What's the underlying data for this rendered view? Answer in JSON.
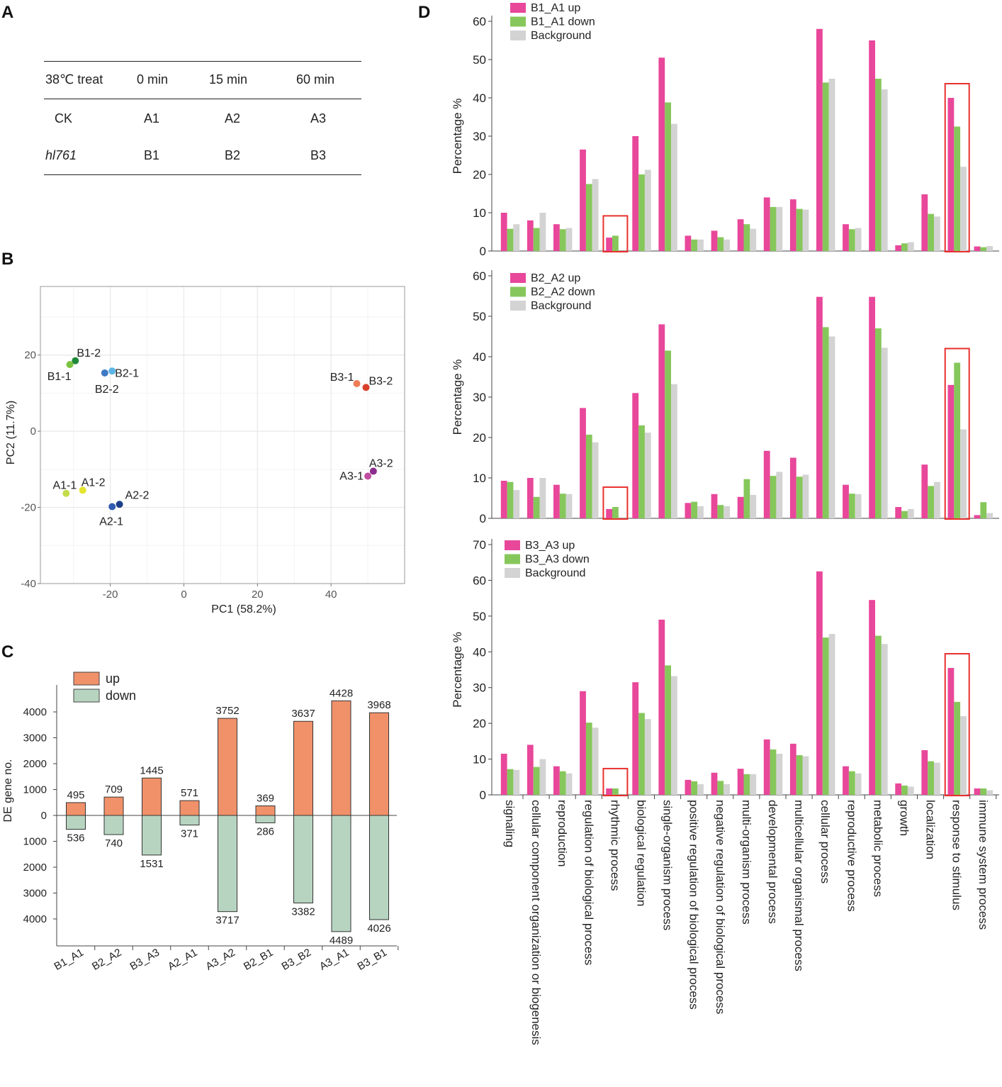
{
  "panels": {
    "a": "A",
    "b": "B",
    "c": "C",
    "d": "D"
  },
  "table": {
    "header": [
      "38℃ treat",
      "0 min",
      "15 min",
      "60 min"
    ],
    "rows": [
      [
        "CK",
        "A1",
        "A2",
        "A3"
      ],
      [
        "hl761",
        "B1",
        "B2",
        "B3"
      ]
    ]
  },
  "colors": {
    "up": "#F0916A",
    "down": "#B7D4C0",
    "pca_axis": "#777777",
    "go_up": "#E8479A",
    "go_down": "#86C75B",
    "go_bg": "#D3D3D3",
    "highlight": "#E8302E"
  },
  "chart_data": [
    {
      "id": "pca",
      "type": "scatter",
      "xlabel": "PC1 (58.2%)",
      "ylabel": "PC2 (11.7%)",
      "xlim": [
        -39,
        60
      ],
      "ylim": [
        -40,
        38
      ],
      "xticks": [
        -20,
        0,
        20,
        40
      ],
      "yticks": [
        20,
        0,
        -20,
        -40
      ],
      "points": [
        {
          "label": "B1-2",
          "x": -29.5,
          "y": 18.5,
          "color": "#1E8A3A"
        },
        {
          "label": "B1-1",
          "x": -31,
          "y": 17.5,
          "color": "#7CC242"
        },
        {
          "label": "B2-1",
          "x": -19.5,
          "y": 15.8,
          "color": "#5BB4E5"
        },
        {
          "label": "B2-2",
          "x": -21.5,
          "y": 15.3,
          "color": "#3F79C3"
        },
        {
          "label": "B3-1",
          "x": 47,
          "y": 12.5,
          "color": "#EE7D55"
        },
        {
          "label": "B3-2",
          "x": 49.5,
          "y": 11.5,
          "color": "#D9412B"
        },
        {
          "label": "A1-1",
          "x": -32,
          "y": -16.3,
          "color": "#C5DC4A"
        },
        {
          "label": "A1-2",
          "x": -27.5,
          "y": -15.5,
          "color": "#E3E52E"
        },
        {
          "label": "A2-1",
          "x": -19.5,
          "y": -19.8,
          "color": "#2F5BB0"
        },
        {
          "label": "A2-2",
          "x": -17.5,
          "y": -19.2,
          "color": "#1B3F8A"
        },
        {
          "label": "A3-1",
          "x": 50,
          "y": -11.8,
          "color": "#C04EA0"
        },
        {
          "label": "A3-2",
          "x": 51.5,
          "y": -10.5,
          "color": "#8B2C8E"
        }
      ]
    },
    {
      "id": "de",
      "type": "bar",
      "ylabel": "DE gene no.",
      "legend": [
        "up",
        "down"
      ],
      "yticks_up": [
        "4000",
        "3000",
        "2000",
        "1000",
        "0"
      ],
      "yticks_down": [
        "1000",
        "2000",
        "3000",
        "4000"
      ],
      "categories": [
        "B1_A1",
        "B2_A2",
        "B3_A3",
        "A2_A1",
        "A3_A2",
        "B2_B1",
        "B3_B2",
        "A3_A1",
        "B3_B1"
      ],
      "series": [
        {
          "name": "up",
          "values": [
            495,
            709,
            1445,
            571,
            3752,
            369,
            3637,
            4428,
            3968
          ]
        },
        {
          "name": "down",
          "values": [
            536,
            740,
            1531,
            371,
            3717,
            286,
            3382,
            4489,
            4026
          ]
        }
      ]
    },
    {
      "id": "go",
      "type": "bar",
      "ylabel": "Percentage %",
      "categories": [
        "signaling",
        "cellular component organization or biogenesis",
        "reproduction",
        "regulation of biological process",
        "rhythmic process",
        "biological regulation",
        "single-organism process",
        "positive regulation of biological process",
        "negative regulation of biological process",
        "multi-organism process",
        "developmental process",
        "multicellular organismal process",
        "cellular process",
        "reproductive process",
        "metabolic process",
        "growth",
        "localization",
        "response to stimulus",
        "immune system process"
      ],
      "highlighted_categories": [
        "rhythmic process",
        "response to stimulus"
      ],
      "subplots": [
        {
          "ylim": [
            0,
            60
          ],
          "yticks": [
            "0",
            "10",
            "20",
            "30",
            "40",
            "50",
            "60"
          ],
          "series": [
            {
              "name": "B1_A1 up",
              "values": [
                10,
                8,
                7,
                26.5,
                3.5,
                30,
                50.5,
                4,
                5.3,
                8.3,
                14,
                13.5,
                58,
                7,
                55,
                1.5,
                14.8,
                40,
                1.2
              ]
            },
            {
              "name": "B1_A1 down",
              "values": [
                5.8,
                6,
                5.7,
                17.5,
                4,
                20,
                38.8,
                3,
                3.6,
                7,
                11.5,
                11,
                44,
                5.7,
                45,
                2,
                9.7,
                32.5,
                1
              ]
            },
            {
              "name": "Background",
              "values": [
                7,
                10,
                6,
                18.8,
                0,
                21.2,
                33.2,
                3,
                3,
                5.8,
                11.5,
                10.8,
                45,
                6,
                42.2,
                2.3,
                9,
                22,
                1.3
              ]
            }
          ]
        },
        {
          "ylim": [
            0,
            60
          ],
          "yticks": [
            "0",
            "10",
            "20",
            "30",
            "40",
            "50",
            "60"
          ],
          "series": [
            {
              "name": "B2_A2 up",
              "values": [
                9.3,
                10,
                8.3,
                27.3,
                2.3,
                31,
                48,
                3.8,
                6,
                5.3,
                16.7,
                15,
                54.8,
                8.3,
                54.8,
                2.8,
                13.3,
                33,
                0.8
              ]
            },
            {
              "name": "B2_A2 down",
              "values": [
                9,
                5.3,
                6.1,
                20.7,
                2.8,
                23,
                41.5,
                4.1,
                3.3,
                9.7,
                10.5,
                10.3,
                47.3,
                6.1,
                47,
                1.8,
                8,
                38.5,
                4
              ]
            },
            {
              "name": "Background",
              "values": [
                7,
                10,
                6,
                18.8,
                0,
                21.2,
                33.2,
                3,
                3,
                5.8,
                11.5,
                10.8,
                45,
                6,
                42.2,
                2.3,
                9,
                22,
                1.3
              ]
            }
          ]
        },
        {
          "ylim": [
            0,
            70
          ],
          "yticks": [
            "0",
            "10",
            "20",
            "30",
            "40",
            "50",
            "60",
            "70"
          ],
          "series": [
            {
              "name": "B3_A3 up",
              "values": [
                11.5,
                14,
                8,
                29,
                1.8,
                31.5,
                49,
                4.2,
                6.2,
                7.3,
                15.5,
                14.3,
                62.5,
                8,
                54.5,
                3.2,
                12.5,
                35.5,
                1.8
              ]
            },
            {
              "name": "B3_A3 down",
              "values": [
                7.2,
                7.8,
                6.6,
                20.2,
                1.8,
                22.9,
                36.2,
                3.8,
                3.9,
                5.8,
                12.7,
                11.1,
                44,
                6.6,
                44.5,
                2.6,
                9.4,
                26,
                1.8
              ]
            },
            {
              "name": "Background",
              "values": [
                7,
                10,
                6,
                18.8,
                0,
                21.2,
                33.2,
                3,
                3,
                5.8,
                11.5,
                10.8,
                45,
                6,
                42.2,
                2.3,
                9,
                22,
                1.3
              ]
            }
          ]
        }
      ]
    }
  ]
}
